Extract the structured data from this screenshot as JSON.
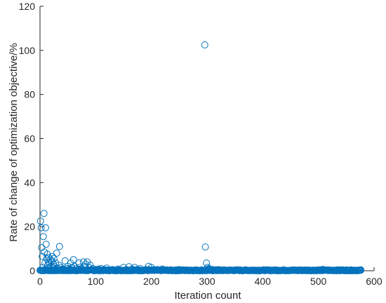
{
  "chart_data": {
    "type": "scatter",
    "title": "",
    "xlabel": "Iteration count",
    "ylabel": "Rate of change of optimization objective/%",
    "xlim": [
      0,
      600
    ],
    "ylim": [
      0,
      120
    ],
    "xticks": [
      0,
      100,
      200,
      300,
      400,
      500,
      600
    ],
    "yticks": [
      0,
      20,
      40,
      60,
      80,
      100,
      120
    ],
    "grid": false,
    "legend": "none",
    "marker": "open-circle",
    "color": "#0072BD",
    "highlight_points": [
      {
        "x": 1,
        "y": 22.5
      },
      {
        "x": 2,
        "y": 19.5
      },
      {
        "x": 3,
        "y": 10.5
      },
      {
        "x": 4,
        "y": 6.5
      },
      {
        "x": 5,
        "y": 1.5
      },
      {
        "x": 6,
        "y": 15.5
      },
      {
        "x": 7,
        "y": 26
      },
      {
        "x": 8,
        "y": 8.5
      },
      {
        "x": 9,
        "y": 3.5
      },
      {
        "x": 10,
        "y": 19.5
      },
      {
        "x": 11,
        "y": 12
      },
      {
        "x": 12,
        "y": 5.5
      },
      {
        "x": 13,
        "y": 7.5
      },
      {
        "x": 14,
        "y": 2.5
      },
      {
        "x": 15,
        "y": 4
      },
      {
        "x": 16,
        "y": 6
      },
      {
        "x": 17,
        "y": 3
      },
      {
        "x": 18,
        "y": 1
      },
      {
        "x": 19,
        "y": 5
      },
      {
        "x": 20,
        "y": 2
      },
      {
        "x": 21,
        "y": 4.5
      },
      {
        "x": 22,
        "y": 6.5
      },
      {
        "x": 23,
        "y": 1.5
      },
      {
        "x": 24,
        "y": 3
      },
      {
        "x": 25,
        "y": 5.5
      },
      {
        "x": 26,
        "y": 2
      },
      {
        "x": 28,
        "y": 3.5
      },
      {
        "x": 30,
        "y": 8
      },
      {
        "x": 32,
        "y": 1
      },
      {
        "x": 34,
        "y": 2.5
      },
      {
        "x": 35,
        "y": 11
      },
      {
        "x": 38,
        "y": 1.5
      },
      {
        "x": 40,
        "y": 0.8
      },
      {
        "x": 43,
        "y": 0.5
      },
      {
        "x": 45,
        "y": 4.5
      },
      {
        "x": 48,
        "y": 1
      },
      {
        "x": 50,
        "y": 2
      },
      {
        "x": 52,
        "y": 0.5
      },
      {
        "x": 55,
        "y": 3.5
      },
      {
        "x": 57,
        "y": 1.5
      },
      {
        "x": 60,
        "y": 5
      },
      {
        "x": 62,
        "y": 2
      },
      {
        "x": 65,
        "y": 1
      },
      {
        "x": 68,
        "y": 0.5
      },
      {
        "x": 70,
        "y": 3.5
      },
      {
        "x": 72,
        "y": 1.5
      },
      {
        "x": 75,
        "y": 0.8
      },
      {
        "x": 78,
        "y": 4
      },
      {
        "x": 80,
        "y": 2
      },
      {
        "x": 82,
        "y": 3
      },
      {
        "x": 85,
        "y": 4
      },
      {
        "x": 88,
        "y": 1.5
      },
      {
        "x": 90,
        "y": 2.5
      },
      {
        "x": 95,
        "y": 1
      },
      {
        "x": 100,
        "y": 0.5
      },
      {
        "x": 105,
        "y": 0.8
      },
      {
        "x": 110,
        "y": 1
      },
      {
        "x": 115,
        "y": 0.5
      },
      {
        "x": 120,
        "y": 1.2
      },
      {
        "x": 130,
        "y": 0.5
      },
      {
        "x": 140,
        "y": 0.8
      },
      {
        "x": 150,
        "y": 1.5
      },
      {
        "x": 155,
        "y": 0.5
      },
      {
        "x": 160,
        "y": 1.8
      },
      {
        "x": 165,
        "y": 0.8
      },
      {
        "x": 170,
        "y": 1.5
      },
      {
        "x": 175,
        "y": 0.5
      },
      {
        "x": 180,
        "y": 1
      },
      {
        "x": 190,
        "y": 0.5
      },
      {
        "x": 195,
        "y": 2
      },
      {
        "x": 200,
        "y": 1.5
      },
      {
        "x": 210,
        "y": 0.5
      },
      {
        "x": 220,
        "y": 0.8
      },
      {
        "x": 250,
        "y": 0.5
      },
      {
        "x": 270,
        "y": 0.3
      },
      {
        "x": 296,
        "y": 102.5
      },
      {
        "x": 297,
        "y": 10.8
      },
      {
        "x": 299,
        "y": 3.5
      },
      {
        "x": 301,
        "y": 1.5
      },
      {
        "x": 303,
        "y": 1
      },
      {
        "x": 305,
        "y": 0.8
      },
      {
        "x": 310,
        "y": 0.5
      },
      {
        "x": 320,
        "y": 0.5
      },
      {
        "x": 350,
        "y": 0.3
      },
      {
        "x": 400,
        "y": 0.3
      },
      {
        "x": 450,
        "y": 0.2
      },
      {
        "x": 508,
        "y": 0.6
      },
      {
        "x": 540,
        "y": 0.2
      },
      {
        "x": 560,
        "y": 0.2
      },
      {
        "x": 576,
        "y": 0.2
      }
    ],
    "dense_band": {
      "x_start": 0,
      "x_end": 577,
      "x_step": 1.2,
      "y_min": 0,
      "y_max": 0.4
    }
  }
}
